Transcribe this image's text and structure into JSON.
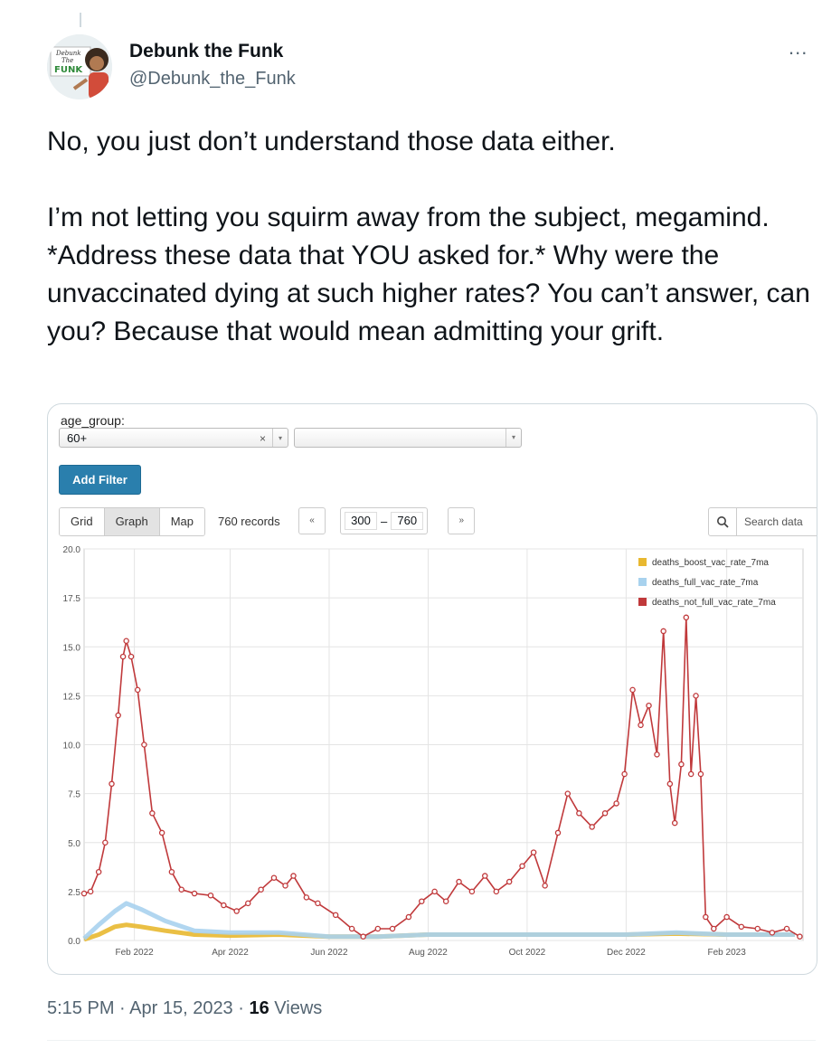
{
  "tweet": {
    "display_name": "Debunk the Funk",
    "handle": "@Debunk_the_Funk",
    "more_icon": "...",
    "paragraphs": [
      "No, you just don’t understand those data either.",
      "I’m not letting you squirm away from the subject, megamind. *Address these data that YOU asked for.* Why were the unvaccinated dying at such higher rates? You can’t answer, can you? Because that would mean admitting your grift."
    ],
    "timestamp": "5:15 PM · Apr 15, 2023 · ",
    "views_count": "16",
    "views_label": " Views"
  },
  "avatar": {
    "sign_line1": "Debunk",
    "sign_line2": "The",
    "sign_line3": "FUNK"
  },
  "dashboard": {
    "filter_label": "age_group:",
    "filter_value": "60+",
    "clear_icon": "×",
    "dropdown_icon": "▾",
    "add_filter_label": "Add Filter",
    "tabs": [
      "Grid",
      "Graph",
      "Map"
    ],
    "active_tab": "Graph",
    "records_label": "760 records",
    "pager_prev": "«",
    "pager_next": "»",
    "range_start": "300",
    "range_sep": "–",
    "range_end": "760",
    "search_icon": "magnifier-icon",
    "search_placeholder": "Search data"
  },
  "colors": {
    "boost": "#e8b830",
    "full": "#a8d2ee",
    "not_full": "#c0393b",
    "accent": "#2a7fad"
  },
  "chart_data": {
    "type": "line",
    "ylim": [
      0,
      20
    ],
    "yticks": [
      "0.0",
      "2.5",
      "5.0",
      "7.5",
      "10.0",
      "12.5",
      "15.0",
      "17.5",
      "20.0"
    ],
    "xticks": [
      "Feb 2022",
      "Apr 2022",
      "Jun 2022",
      "Aug 2022",
      "Oct 2022",
      "Dec 2022",
      "Feb 2023"
    ],
    "x_start": "2022-01-01",
    "x_end": "2023-03-20",
    "legend_position": "top-right",
    "series": [
      {
        "name": "deaths_boost_vac_rate_7ma",
        "color": "#e8b830",
        "points": [
          [
            "2022-01-01",
            0.05
          ],
          [
            "2022-01-10",
            0.3
          ],
          [
            "2022-01-20",
            0.7
          ],
          [
            "2022-01-27",
            0.8
          ],
          [
            "2022-02-05",
            0.7
          ],
          [
            "2022-02-20",
            0.5
          ],
          [
            "2022-03-10",
            0.3
          ],
          [
            "2022-04-01",
            0.25
          ],
          [
            "2022-05-01",
            0.3
          ],
          [
            "2022-06-01",
            0.2
          ],
          [
            "2022-07-01",
            0.2
          ],
          [
            "2022-08-01",
            0.3
          ],
          [
            "2022-09-01",
            0.3
          ],
          [
            "2022-10-01",
            0.3
          ],
          [
            "2022-11-01",
            0.3
          ],
          [
            "2022-12-01",
            0.3
          ],
          [
            "2023-01-01",
            0.35
          ],
          [
            "2023-02-01",
            0.3
          ],
          [
            "2023-03-15",
            0.3
          ]
        ]
      },
      {
        "name": "deaths_full_vac_rate_7ma",
        "color": "#a8d2ee",
        "points": [
          [
            "2022-01-01",
            0.1
          ],
          [
            "2022-01-10",
            0.8
          ],
          [
            "2022-01-20",
            1.5
          ],
          [
            "2022-01-27",
            1.9
          ],
          [
            "2022-02-05",
            1.6
          ],
          [
            "2022-02-20",
            1.0
          ],
          [
            "2022-03-10",
            0.5
          ],
          [
            "2022-04-01",
            0.4
          ],
          [
            "2022-05-01",
            0.4
          ],
          [
            "2022-06-01",
            0.2
          ],
          [
            "2022-07-01",
            0.2
          ],
          [
            "2022-08-01",
            0.3
          ],
          [
            "2022-09-01",
            0.3
          ],
          [
            "2022-10-01",
            0.3
          ],
          [
            "2022-11-01",
            0.3
          ],
          [
            "2022-12-01",
            0.3
          ],
          [
            "2023-01-01",
            0.4
          ],
          [
            "2023-02-01",
            0.3
          ],
          [
            "2023-03-15",
            0.3
          ]
        ]
      },
      {
        "name": "deaths_not_full_vac_rate_7ma",
        "color": "#c0393b",
        "points": [
          [
            "2022-01-01",
            2.4
          ],
          [
            "2022-01-05",
            2.5
          ],
          [
            "2022-01-10",
            3.5
          ],
          [
            "2022-01-14",
            5.0
          ],
          [
            "2022-01-18",
            8.0
          ],
          [
            "2022-01-22",
            11.5
          ],
          [
            "2022-01-25",
            14.5
          ],
          [
            "2022-01-27",
            15.3
          ],
          [
            "2022-01-30",
            14.5
          ],
          [
            "2022-02-03",
            12.8
          ],
          [
            "2022-02-07",
            10.0
          ],
          [
            "2022-02-12",
            6.5
          ],
          [
            "2022-02-18",
            5.5
          ],
          [
            "2022-02-24",
            3.5
          ],
          [
            "2022-03-02",
            2.6
          ],
          [
            "2022-03-10",
            2.4
          ],
          [
            "2022-03-20",
            2.3
          ],
          [
            "2022-03-28",
            1.8
          ],
          [
            "2022-04-05",
            1.5
          ],
          [
            "2022-04-12",
            1.9
          ],
          [
            "2022-04-20",
            2.6
          ],
          [
            "2022-04-28",
            3.2
          ],
          [
            "2022-05-05",
            2.8
          ],
          [
            "2022-05-10",
            3.3
          ],
          [
            "2022-05-18",
            2.2
          ],
          [
            "2022-05-25",
            1.9
          ],
          [
            "2022-06-05",
            1.3
          ],
          [
            "2022-06-15",
            0.6
          ],
          [
            "2022-06-22",
            0.2
          ],
          [
            "2022-07-01",
            0.6
          ],
          [
            "2022-07-10",
            0.6
          ],
          [
            "2022-07-20",
            1.2
          ],
          [
            "2022-07-28",
            2.0
          ],
          [
            "2022-08-05",
            2.5
          ],
          [
            "2022-08-12",
            2.0
          ],
          [
            "2022-08-20",
            3.0
          ],
          [
            "2022-08-28",
            2.5
          ],
          [
            "2022-09-05",
            3.3
          ],
          [
            "2022-09-12",
            2.5
          ],
          [
            "2022-09-20",
            3.0
          ],
          [
            "2022-09-28",
            3.8
          ],
          [
            "2022-10-05",
            4.5
          ],
          [
            "2022-10-12",
            2.8
          ],
          [
            "2022-10-20",
            5.5
          ],
          [
            "2022-10-26",
            7.5
          ],
          [
            "2022-11-02",
            6.5
          ],
          [
            "2022-11-10",
            5.8
          ],
          [
            "2022-11-18",
            6.5
          ],
          [
            "2022-11-25",
            7.0
          ],
          [
            "2022-11-30",
            8.5
          ],
          [
            "2022-12-05",
            12.8
          ],
          [
            "2022-12-10",
            11.0
          ],
          [
            "2022-12-15",
            12.0
          ],
          [
            "2022-12-20",
            9.5
          ],
          [
            "2022-12-24",
            15.8
          ],
          [
            "2022-12-28",
            8.0
          ],
          [
            "2022-12-31",
            6.0
          ],
          [
            "2023-01-04",
            9.0
          ],
          [
            "2023-01-07",
            16.5
          ],
          [
            "2023-01-10",
            8.5
          ],
          [
            "2023-01-13",
            12.5
          ],
          [
            "2023-01-16",
            8.5
          ],
          [
            "2023-01-19",
            1.2
          ],
          [
            "2023-01-24",
            0.6
          ],
          [
            "2023-02-01",
            1.2
          ],
          [
            "2023-02-10",
            0.7
          ],
          [
            "2023-02-20",
            0.6
          ],
          [
            "2023-03-01",
            0.4
          ],
          [
            "2023-03-10",
            0.6
          ],
          [
            "2023-03-18",
            0.2
          ]
        ]
      }
    ]
  }
}
